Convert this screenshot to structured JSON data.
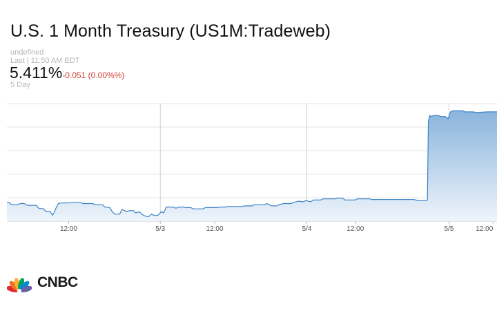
{
  "header": {
    "title": "U.S. 1 Month Treasury (US1M:Tradeweb)",
    "status_text": "undefined",
    "last_label": "Last | 11:50 AM EDT",
    "price": "5.411%",
    "change": "-0.051 (0.00%%)",
    "range_label": "5 Day"
  },
  "colors": {
    "line": "#3b82c4",
    "fill_top": "#8ab4dc",
    "fill_bottom": "#eef4fb",
    "change_negative": "#d13b34",
    "grid": "#e6e6e6"
  },
  "chart_data": {
    "type": "area",
    "title": "U.S. 1 Month Treasury (US1M:Tradeweb)",
    "xlabel": "",
    "ylabel": "",
    "x_tick_labels": [
      "12:00",
      "5/3",
      "12:00",
      "5/4",
      "12:00",
      "5/5",
      "12:00"
    ],
    "grid": true,
    "y_ticks_shown": false,
    "note_y": "y values are relative levels on an unlabeled 0-100 scale",
    "ylim": [
      0,
      100
    ],
    "x_range": [
      0,
      100
    ],
    "series": [
      {
        "values": [
          [
            0,
            16
          ],
          [
            0.5,
            16
          ],
          [
            0.8,
            14.5
          ],
          [
            1.5,
            14
          ],
          [
            2,
            14
          ],
          [
            2.8,
            15
          ],
          [
            3.5,
            15
          ],
          [
            4.2,
            13.5
          ],
          [
            6,
            13.5
          ],
          [
            6.5,
            11
          ],
          [
            7.5,
            10.5
          ],
          [
            8,
            8
          ],
          [
            8.8,
            8.5
          ],
          [
            9.3,
            5
          ],
          [
            9.6,
            7
          ],
          [
            10,
            11
          ],
          [
            10.5,
            15
          ],
          [
            11,
            15.5
          ],
          [
            12.5,
            15.5
          ],
          [
            13,
            16
          ],
          [
            15,
            16
          ],
          [
            15.5,
            15
          ],
          [
            17.5,
            15
          ],
          [
            18,
            14
          ],
          [
            19.5,
            14
          ],
          [
            20,
            12
          ],
          [
            21,
            11.5
          ],
          [
            21.5,
            8
          ],
          [
            22,
            6
          ],
          [
            23,
            6
          ],
          [
            23.5,
            10
          ],
          [
            24,
            9
          ],
          [
            24.5,
            8
          ],
          [
            25,
            9
          ],
          [
            25.8,
            9
          ],
          [
            26.2,
            7
          ],
          [
            27,
            8
          ],
          [
            27.8,
            5
          ],
          [
            28.5,
            4
          ],
          [
            29,
            4
          ],
          [
            29.5,
            6
          ],
          [
            30,
            5
          ],
          [
            30.8,
            5
          ],
          [
            31.5,
            8
          ],
          [
            32,
            7
          ],
          [
            32.5,
            12
          ],
          [
            34,
            12
          ],
          [
            34.5,
            11
          ],
          [
            35,
            12
          ],
          [
            36,
            12
          ],
          [
            36.5,
            11.5
          ],
          [
            37.5,
            11.5
          ],
          [
            38,
            10.5
          ],
          [
            40,
            10.5
          ],
          [
            40.5,
            11.5
          ],
          [
            43,
            11.5
          ],
          [
            43.5,
            12
          ],
          [
            44.5,
            12
          ],
          [
            45,
            12.5
          ],
          [
            48,
            12.5
          ],
          [
            48.5,
            13
          ],
          [
            50,
            13
          ],
          [
            50.5,
            14
          ],
          [
            52.5,
            14
          ],
          [
            53,
            15
          ],
          [
            53.5,
            14
          ],
          [
            54,
            13
          ],
          [
            55,
            13
          ],
          [
            55.5,
            14
          ],
          [
            56.5,
            15
          ],
          [
            58,
            15
          ],
          [
            58.5,
            16
          ],
          [
            59.5,
            17
          ],
          [
            60.5,
            16.5
          ],
          [
            61,
            17.5
          ],
          [
            62,
            16.5
          ],
          [
            62.5,
            18
          ],
          [
            64,
            18
          ],
          [
            64.5,
            19
          ],
          [
            67,
            19
          ],
          [
            67.5,
            19.5
          ],
          [
            68.5,
            19.5
          ],
          [
            69,
            18
          ],
          [
            71,
            18
          ],
          [
            71.5,
            19
          ],
          [
            74,
            19
          ],
          [
            74.5,
            18.5
          ],
          [
            83,
            18.5
          ],
          [
            84,
            17.5
          ],
          [
            85.5,
            17.5
          ],
          [
            85.8,
            18
          ],
          [
            86,
            85
          ],
          [
            86.3,
            90
          ],
          [
            86.6,
            89
          ],
          [
            87,
            90
          ],
          [
            88,
            90
          ],
          [
            88.5,
            89
          ],
          [
            89.5,
            89
          ],
          [
            90,
            87
          ],
          [
            90.5,
            93
          ],
          [
            91,
            94
          ],
          [
            93,
            94
          ],
          [
            93.5,
            93
          ],
          [
            95,
            93
          ],
          [
            96,
            92.5
          ],
          [
            98,
            93
          ],
          [
            100,
            93
          ]
        ]
      }
    ]
  }
}
